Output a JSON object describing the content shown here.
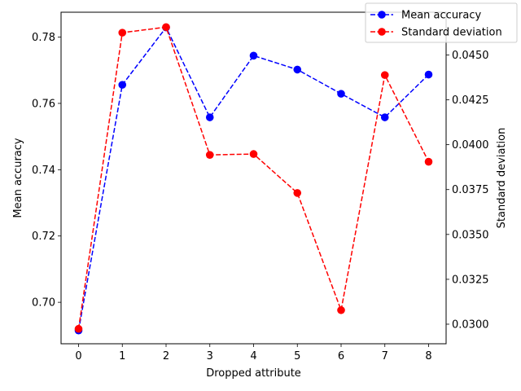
{
  "chart_data": {
    "type": "line",
    "x": [
      0,
      1,
      2,
      3,
      4,
      5,
      6,
      7,
      8
    ],
    "xlabel": "Dropped attribute",
    "xlim": [
      -0.4,
      8.4
    ],
    "xticks": [
      "0",
      "1",
      "2",
      "3",
      "4",
      "5",
      "6",
      "7",
      "8"
    ],
    "grid": false,
    "legend_placement": "top-right",
    "series": [
      {
        "name": "Mean accuracy",
        "axis": "left",
        "color": "#0000ff",
        "style": "dashed",
        "marker": "circle",
        "values": [
          0.6915,
          0.7656,
          0.7829,
          0.7558,
          0.7744,
          0.7702,
          0.7629,
          0.7558,
          0.7687
        ]
      },
      {
        "name": "Standard deviation",
        "axis": "right",
        "color": "#ff0000",
        "style": "dashed",
        "marker": "circle",
        "values": [
          0.02974,
          0.04624,
          0.04655,
          0.03943,
          0.03948,
          0.03731,
          0.03078,
          0.04388,
          0.03905
        ]
      }
    ],
    "left_axis": {
      "label": "Mean accuracy",
      "ylim": [
        0.6875,
        0.7875
      ],
      "ticks": [
        0.7,
        0.72,
        0.74,
        0.76,
        0.78
      ],
      "tick_labels": [
        "0.70",
        "0.72",
        "0.74",
        "0.76",
        "0.78"
      ]
    },
    "right_axis": {
      "label": "Standard deviation",
      "ylim": [
        0.02891,
        0.04738
      ],
      "ticks": [
        0.03,
        0.0325,
        0.035,
        0.0375,
        0.04,
        0.0425,
        0.045
      ],
      "tick_labels": [
        "0.0300",
        "0.0325",
        "0.0350",
        "0.0375",
        "0.0400",
        "0.0425",
        "0.0450"
      ]
    }
  }
}
